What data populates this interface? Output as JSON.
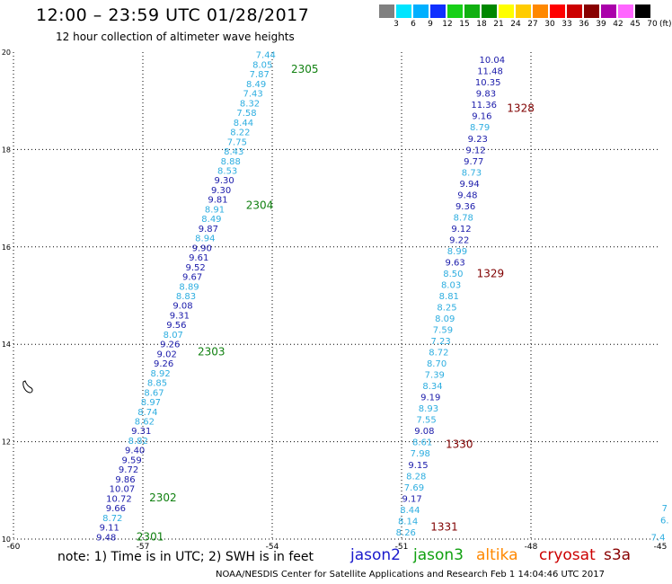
{
  "header": {
    "title": "12:00 – 23:59 UTC 01/28/2017",
    "subtitle": "12 hour collection of altimeter wave heights"
  },
  "legend": {
    "unit": "(ft)",
    "bins": [
      {
        "label": "3",
        "color": "#808080"
      },
      {
        "label": "6",
        "color": "#00e5ff"
      },
      {
        "label": "9",
        "color": "#00b0ff"
      },
      {
        "label": "12",
        "color": "#1030ff"
      },
      {
        "label": "15",
        "color": "#18d018"
      },
      {
        "label": "18",
        "color": "#10b010"
      },
      {
        "label": "21",
        "color": "#008800"
      },
      {
        "label": "24",
        "color": "#ffff00"
      },
      {
        "label": "27",
        "color": "#ffcc00"
      },
      {
        "label": "30",
        "color": "#ff8800"
      },
      {
        "label": "33",
        "color": "#ff0000"
      },
      {
        "label": "36",
        "color": "#cc0000"
      },
      {
        "label": "39",
        "color": "#880000"
      },
      {
        "label": "42",
        "color": "#aa00aa"
      },
      {
        "label": "45",
        "color": "#ff66ff"
      },
      {
        "label": "70",
        "color": "#000000"
      }
    ]
  },
  "map": {
    "lon_ticks": [
      {
        "value": -60,
        "label": "-60"
      },
      {
        "value": -57,
        "label": "-57"
      },
      {
        "value": -54,
        "label": "-54"
      },
      {
        "value": -51,
        "label": "-51"
      },
      {
        "value": -48,
        "label": "-48"
      },
      {
        "value": -45,
        "label": "-45"
      }
    ],
    "lat_ticks": [
      {
        "value": 10,
        "label": "10"
      },
      {
        "value": 12,
        "label": "12"
      },
      {
        "value": 14,
        "label": "14"
      },
      {
        "value": 16,
        "label": "16"
      },
      {
        "value": 18,
        "label": "18"
      },
      {
        "value": 20,
        "label": "20"
      }
    ],
    "track_colors": {
      "light": "#2eaee0",
      "dark": "#1a1aaa"
    },
    "time_label_color_green": "#108010",
    "time_label_color_red": "#800000",
    "track_west": {
      "lon_start": -57.85,
      "lat_start": 10.05,
      "lon_end": -54.15,
      "lat_end": 19.95,
      "values": [
        {
          "v": "9.48",
          "c": "dark"
        },
        {
          "v": "9.11",
          "c": "dark"
        },
        {
          "v": "8.72",
          "c": "light"
        },
        {
          "v": "9.66",
          "c": "dark"
        },
        {
          "v": "10.72",
          "c": "dark"
        },
        {
          "v": "10.07",
          "c": "dark"
        },
        {
          "v": "9.86",
          "c": "dark"
        },
        {
          "v": "9.72",
          "c": "dark"
        },
        {
          "v": "9.59",
          "c": "dark"
        },
        {
          "v": "9.40",
          "c": "dark"
        },
        {
          "v": "8.82",
          "c": "light"
        },
        {
          "v": "9.31",
          "c": "dark"
        },
        {
          "v": "8.62",
          "c": "light"
        },
        {
          "v": "8.74",
          "c": "light"
        },
        {
          "v": "8.97",
          "c": "light"
        },
        {
          "v": "8.67",
          "c": "light"
        },
        {
          "v": "8.85",
          "c": "light"
        },
        {
          "v": "8.92",
          "c": "light"
        },
        {
          "v": "9.26",
          "c": "dark"
        },
        {
          "v": "9.02",
          "c": "dark"
        },
        {
          "v": "9.26",
          "c": "dark"
        },
        {
          "v": "8.07",
          "c": "light"
        },
        {
          "v": "9.56",
          "c": "dark"
        },
        {
          "v": "9.31",
          "c": "dark"
        },
        {
          "v": "9.08",
          "c": "dark"
        },
        {
          "v": "8.83",
          "c": "light"
        },
        {
          "v": "8.89",
          "c": "light"
        },
        {
          "v": "9.67",
          "c": "dark"
        },
        {
          "v": "9.52",
          "c": "dark"
        },
        {
          "v": "9.61",
          "c": "dark"
        },
        {
          "v": "9.90",
          "c": "dark"
        },
        {
          "v": "8.94",
          "c": "light"
        },
        {
          "v": "9.87",
          "c": "dark"
        },
        {
          "v": "8.49",
          "c": "light"
        },
        {
          "v": "8.91",
          "c": "light"
        },
        {
          "v": "9.81",
          "c": "dark"
        },
        {
          "v": "9.30",
          "c": "dark"
        },
        {
          "v": "9.30",
          "c": "dark"
        },
        {
          "v": "8.53",
          "c": "light"
        },
        {
          "v": "8.88",
          "c": "light"
        },
        {
          "v": "8.43",
          "c": "light"
        },
        {
          "v": "7.75",
          "c": "light"
        },
        {
          "v": "8.22",
          "c": "light"
        },
        {
          "v": "8.44",
          "c": "light"
        },
        {
          "v": "7.58",
          "c": "light"
        },
        {
          "v": "8.32",
          "c": "light"
        },
        {
          "v": "7.43",
          "c": "light"
        },
        {
          "v": "8.49",
          "c": "light"
        },
        {
          "v": "7.87",
          "c": "light"
        },
        {
          "v": "8.05",
          "c": "light"
        },
        {
          "v": "7.44",
          "c": "light"
        }
      ],
      "time_labels": [
        {
          "label": "2301",
          "lat": 10.05,
          "dlon": 0.7
        },
        {
          "label": "2302",
          "lat": 10.85,
          "dlon": 0.7
        },
        {
          "label": "2303",
          "lat": 13.85,
          "dlon": 0.7
        },
        {
          "label": "2304",
          "lat": 16.85,
          "dlon": 0.7
        },
        {
          "label": "2305",
          "lat": 19.65,
          "dlon": 0.7
        }
      ]
    },
    "track_east": {
      "lon_start": -50.9,
      "lat_start": 10.15,
      "lon_end": -48.9,
      "lat_end": 19.85,
      "values": [
        {
          "v": "8.26",
          "c": "light"
        },
        {
          "v": "8.14",
          "c": "light"
        },
        {
          "v": "8.44",
          "c": "light"
        },
        {
          "v": "9.17",
          "c": "dark"
        },
        {
          "v": "7.69",
          "c": "light"
        },
        {
          "v": "8.28",
          "c": "light"
        },
        {
          "v": "9.15",
          "c": "dark"
        },
        {
          "v": "7.98",
          "c": "light"
        },
        {
          "v": "8.61",
          "c": "light"
        },
        {
          "v": "9.08",
          "c": "dark"
        },
        {
          "v": "7.55",
          "c": "light"
        },
        {
          "v": "8.93",
          "c": "light"
        },
        {
          "v": "9.19",
          "c": "dark"
        },
        {
          "v": "8.34",
          "c": "light"
        },
        {
          "v": "7.39",
          "c": "light"
        },
        {
          "v": "8.70",
          "c": "light"
        },
        {
          "v": "8.72",
          "c": "light"
        },
        {
          "v": "7.23",
          "c": "light"
        },
        {
          "v": "7.59",
          "c": "light"
        },
        {
          "v": "8.09",
          "c": "light"
        },
        {
          "v": "8.25",
          "c": "light"
        },
        {
          "v": "8.81",
          "c": "light"
        },
        {
          "v": "8.03",
          "c": "light"
        },
        {
          "v": "8.50",
          "c": "light"
        },
        {
          "v": "9.63",
          "c": "dark"
        },
        {
          "v": "8.99",
          "c": "light"
        },
        {
          "v": "9.22",
          "c": "dark"
        },
        {
          "v": "9.12",
          "c": "dark"
        },
        {
          "v": "8.78",
          "c": "light"
        },
        {
          "v": "9.36",
          "c": "dark"
        },
        {
          "v": "9.48",
          "c": "dark"
        },
        {
          "v": "9.94",
          "c": "dark"
        },
        {
          "v": "8.73",
          "c": "light"
        },
        {
          "v": "9.77",
          "c": "dark"
        },
        {
          "v": "9.12",
          "c": "dark"
        },
        {
          "v": "9.23",
          "c": "dark"
        },
        {
          "v": "8.79",
          "c": "light"
        },
        {
          "v": "9.16",
          "c": "dark"
        },
        {
          "v": "11.36",
          "c": "dark"
        },
        {
          "v": "9.83",
          "c": "dark"
        },
        {
          "v": "10.35",
          "c": "dark"
        },
        {
          "v": "11.48",
          "c": "dark"
        },
        {
          "v": "10.04",
          "c": "dark"
        }
      ],
      "time_labels": [
        {
          "label": "1331",
          "lat": 10.25,
          "dlon": 0.55
        },
        {
          "label": "1330",
          "lat": 11.95,
          "dlon": 0.55
        },
        {
          "label": "1329",
          "lat": 15.45,
          "dlon": 0.55
        },
        {
          "label": "1328",
          "lat": 18.85,
          "dlon": 0.55
        }
      ]
    },
    "track_edge": {
      "values": [
        {
          "v": "7.4",
          "c": "light",
          "lon": -45.05,
          "lat": 10.05
        },
        {
          "v": "6.",
          "c": "light",
          "lon": -44.9,
          "lat": 10.4
        },
        {
          "v": "7",
          "c": "light",
          "lon": -44.9,
          "lat": 10.65
        }
      ]
    }
  },
  "footer": {
    "note": "note:  1) Time is in UTC;  2) SWH is in feet",
    "satellites": [
      {
        "name": "jason2",
        "color": "#1a1acc"
      },
      {
        "name": "jason3",
        "color": "#10a010"
      },
      {
        "name": "altika",
        "color": "#ff8800"
      },
      {
        "name": "cryosat",
        "color": "#cc0000"
      },
      {
        "name": "s3a",
        "color": "#880000"
      }
    ],
    "credit": "NOAA/NESDIS Center for Satellite Applications and Research    Feb  1 14:04:46 UTC 2017"
  }
}
